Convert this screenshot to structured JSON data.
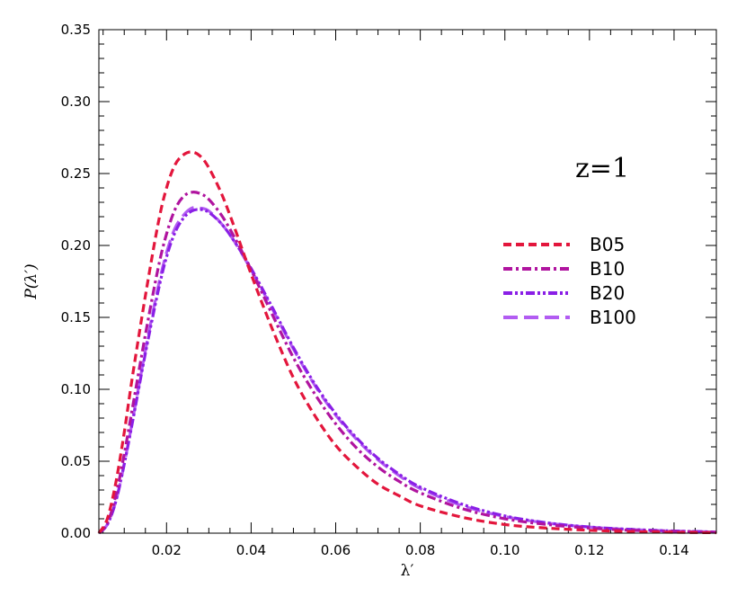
{
  "chart_data": {
    "type": "line",
    "xlabel": "λ′",
    "ylabel": "P(λ′)",
    "xlim": [
      0.004,
      0.15
    ],
    "ylim": [
      0.0,
      0.35
    ],
    "xticks": [
      0.02,
      0.04,
      0.06,
      0.08,
      0.1,
      0.12,
      0.14
    ],
    "xtick_labels": [
      "0.02",
      "0.04",
      "0.06",
      "0.08",
      "0.10",
      "0.12",
      "0.14"
    ],
    "yticks": [
      0.0,
      0.05,
      0.1,
      0.15,
      0.2,
      0.25,
      0.3,
      0.35
    ],
    "ytick_labels": [
      "0.00",
      "0.05",
      "0.10",
      "0.15",
      "0.20",
      "0.25",
      "0.30",
      "0.35"
    ],
    "annotation": "z=1",
    "legend_position": "right",
    "series": [
      {
        "name": "B05",
        "color": "#e3163c",
        "dash": "dashed",
        "x": [
          0.004,
          0.006,
          0.008,
          0.01,
          0.012,
          0.015,
          0.018,
          0.02,
          0.022,
          0.024,
          0.026,
          0.028,
          0.03,
          0.033,
          0.036,
          0.04,
          0.045,
          0.05,
          0.055,
          0.06,
          0.065,
          0.07,
          0.075,
          0.08,
          0.09,
          0.1,
          0.11,
          0.12,
          0.13,
          0.14,
          0.15
        ],
        "y": [
          0.0,
          0.01,
          0.035,
          0.07,
          0.11,
          0.165,
          0.215,
          0.24,
          0.256,
          0.263,
          0.265,
          0.262,
          0.254,
          0.236,
          0.213,
          0.18,
          0.142,
          0.108,
          0.082,
          0.061,
          0.046,
          0.034,
          0.026,
          0.019,
          0.011,
          0.006,
          0.0035,
          0.002,
          0.0011,
          0.0006,
          0.0003
        ]
      },
      {
        "name": "B10",
        "color": "#b0149f",
        "dash": "dashdot",
        "x": [
          0.004,
          0.006,
          0.008,
          0.01,
          0.012,
          0.015,
          0.018,
          0.02,
          0.022,
          0.024,
          0.026,
          0.028,
          0.03,
          0.033,
          0.036,
          0.04,
          0.045,
          0.05,
          0.055,
          0.06,
          0.065,
          0.07,
          0.075,
          0.08,
          0.09,
          0.1,
          0.11,
          0.12,
          0.13,
          0.14,
          0.15
        ],
        "y": [
          0.0,
          0.007,
          0.026,
          0.055,
          0.088,
          0.138,
          0.184,
          0.208,
          0.225,
          0.234,
          0.237,
          0.236,
          0.232,
          0.221,
          0.206,
          0.183,
          0.152,
          0.122,
          0.097,
          0.076,
          0.059,
          0.046,
          0.036,
          0.028,
          0.017,
          0.01,
          0.006,
          0.0035,
          0.002,
          0.0012,
          0.0006
        ]
      },
      {
        "name": "B20",
        "color": "#8a1fe6",
        "dash": "dashdotdot",
        "x": [
          0.004,
          0.006,
          0.008,
          0.01,
          0.012,
          0.015,
          0.018,
          0.02,
          0.022,
          0.024,
          0.026,
          0.028,
          0.03,
          0.033,
          0.036,
          0.04,
          0.045,
          0.05,
          0.055,
          0.06,
          0.065,
          0.07,
          0.075,
          0.08,
          0.09,
          0.1,
          0.11,
          0.12,
          0.13,
          0.14,
          0.15
        ],
        "y": [
          0.0,
          0.006,
          0.022,
          0.048,
          0.078,
          0.125,
          0.168,
          0.192,
          0.209,
          0.219,
          0.224,
          0.225,
          0.223,
          0.215,
          0.203,
          0.184,
          0.157,
          0.129,
          0.104,
          0.083,
          0.066,
          0.052,
          0.041,
          0.032,
          0.02,
          0.012,
          0.0072,
          0.0043,
          0.0026,
          0.0015,
          0.0008
        ]
      },
      {
        "name": "B100",
        "color": "#b25cf2",
        "dash": "longdash",
        "x": [
          0.004,
          0.006,
          0.008,
          0.01,
          0.012,
          0.015,
          0.018,
          0.02,
          0.022,
          0.024,
          0.026,
          0.028,
          0.03,
          0.033,
          0.036,
          0.04,
          0.045,
          0.05,
          0.055,
          0.06,
          0.065,
          0.07,
          0.075,
          0.08,
          0.09,
          0.1,
          0.11,
          0.12,
          0.13,
          0.14,
          0.15
        ],
        "y": [
          0.0,
          0.006,
          0.022,
          0.048,
          0.079,
          0.127,
          0.171,
          0.195,
          0.212,
          0.221,
          0.226,
          0.226,
          0.224,
          0.215,
          0.203,
          0.183,
          0.156,
          0.128,
          0.103,
          0.082,
          0.065,
          0.051,
          0.04,
          0.031,
          0.019,
          0.0115,
          0.007,
          0.0042,
          0.0025,
          0.0015,
          0.0008
        ]
      }
    ]
  }
}
